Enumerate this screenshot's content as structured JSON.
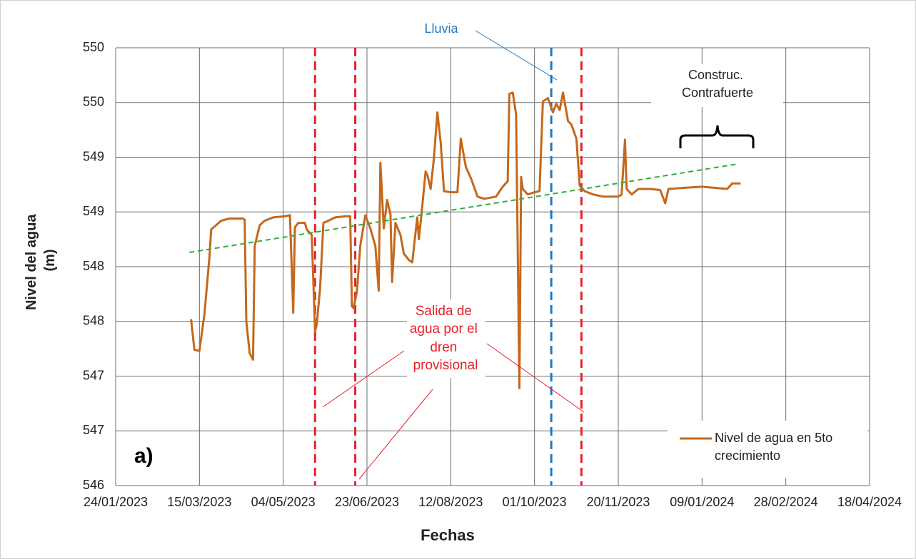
{
  "chart_data": {
    "type": "line",
    "x_label": "Fechas",
    "y_label": [
      "Nivel del agua",
      "(m)"
    ],
    "xlim": [
      "24/01/2023",
      "18/04/2024"
    ],
    "xticks": [
      "24/01/2023",
      "15/03/2023",
      "04/05/2023",
      "23/06/2023",
      "12/08/2023",
      "01/10/2023",
      "20/11/2023",
      "09/01/2024",
      "28/02/2024",
      "18/04/2024"
    ],
    "ylim": [
      546,
      550
    ],
    "yticks": [
      546,
      {
        "value": 546.5,
        "label": "547"
      },
      547,
      {
        "value": 547.5,
        "label": "548"
      },
      548,
      {
        "value": 548.5,
        "label": "549"
      },
      549,
      {
        "value": 549.5,
        "label": "550"
      },
      550
    ],
    "grid": true,
    "legend": "bottom-right",
    "series": [
      {
        "name": [
          "Nivel de agua en 5to",
          "crecimiento"
        ],
        "color": "#c5681c",
        "x": [
          "10/03/2023",
          "12/03/2023",
          "15/03/2023",
          "18/03/2023",
          "21/03/2023",
          "22/03/2023",
          "25/03/2023",
          "28/03/2023",
          "02/04/2023",
          "10/04/2023",
          "11/04/2023",
          "12/04/2023",
          "14/04/2023",
          "16/04/2023",
          "17/04/2023",
          "20/04/2023",
          "23/04/2023",
          "28/04/2023",
          "05/05/2023",
          "08/05/2023",
          "10/05/2023",
          "11/05/2023",
          "13/05/2023",
          "17/05/2023",
          "18/05/2023",
          "21/05/2023",
          "23/05/2023",
          "24/05/2023",
          "26/05/2023",
          "28/05/2023",
          "31/05/2023",
          "04/06/2023",
          "10/06/2023",
          "13/06/2023",
          "14/06/2023",
          "15/06/2023",
          "17/06/2023",
          "19/06/2023",
          "22/06/2023",
          "25/06/2023",
          "28/06/2023",
          "30/06/2023",
          "01/07/2023",
          "03/07/2023",
          "05/07/2023",
          "07/07/2023",
          "08/07/2023",
          "10/07/2023",
          "13/07/2023",
          "15/07/2023",
          "18/07/2023",
          "20/07/2023",
          "23/07/2023",
          "24/07/2023",
          "26/07/2023",
          "28/07/2023",
          "29/07/2023",
          "31/07/2023",
          "02/08/2023",
          "04/08/2023",
          "06/08/2023",
          "08/08/2023",
          "12/08/2023",
          "16/08/2023",
          "18/08/2023",
          "21/08/2023",
          "24/08/2023",
          "28/08/2023",
          "01/09/2023",
          "08/09/2023",
          "12/09/2023",
          "15/09/2023",
          "16/09/2023",
          "18/09/2023",
          "20/09/2023",
          "22/09/2023",
          "23/09/2023",
          "24/09/2023",
          "27/09/2023",
          "01/10/2023",
          "04/10/2023",
          "06/10/2023",
          "09/10/2023",
          "12/10/2023",
          "14/10/2023",
          "16/10/2023",
          "18/10/2023",
          "21/10/2023",
          "23/10/2023",
          "26/10/2023",
          "28/10/2023",
          "31/10/2023",
          "05/11/2023",
          "11/11/2023",
          "20/11/2023",
          "22/11/2023",
          "24/11/2023",
          "25/11/2023",
          "28/11/2023",
          "02/12/2023",
          "09/12/2023",
          "15/12/2023",
          "18/12/2023",
          "20/12/2023",
          "29/12/2023",
          "09/01/2024",
          "17/01/2024",
          "24/01/2024",
          "27/01/2024",
          "30/01/2024",
          "01/02/2024"
        ],
        "values": [
          547.52,
          547.24,
          547.23,
          547.57,
          548.09,
          548.34,
          548.38,
          548.42,
          548.44,
          548.44,
          548.43,
          547.5,
          547.21,
          547.15,
          548.19,
          548.38,
          548.42,
          548.45,
          548.46,
          548.47,
          547.58,
          548.36,
          548.4,
          548.4,
          548.34,
          548.29,
          547.41,
          547.47,
          547.8,
          548.4,
          548.42,
          548.45,
          548.46,
          548.46,
          547.64,
          547.62,
          547.77,
          548.19,
          548.47,
          548.35,
          548.19,
          547.78,
          548.95,
          548.35,
          548.61,
          548.48,
          547.86,
          548.4,
          548.29,
          548.12,
          548.06,
          548.04,
          548.45,
          548.25,
          548.55,
          548.87,
          548.84,
          548.71,
          549.0,
          549.41,
          549.13,
          548.69,
          548.68,
          548.68,
          549.17,
          548.91,
          548.81,
          548.64,
          548.62,
          548.64,
          548.73,
          548.78,
          549.58,
          549.59,
          549.39,
          546.89,
          548.82,
          548.71,
          548.66,
          548.68,
          548.69,
          549.51,
          549.54,
          549.41,
          549.49,
          549.43,
          549.59,
          549.33,
          549.3,
          549.17,
          548.74,
          548.69,
          548.66,
          548.64,
          548.64,
          548.66,
          549.16,
          548.71,
          548.66,
          548.71,
          548.71,
          548.7,
          548.58,
          548.71,
          548.72,
          548.73,
          548.72,
          548.71,
          548.76,
          548.76,
          548.76
        ]
      }
    ],
    "trendline": {
      "color": "#2bb03a",
      "x": [
        "09/03/2023",
        "31/01/2024"
      ],
      "y": [
        548.13,
        548.94
      ]
    },
    "vertical_lines": [
      {
        "x": "23/05/2023",
        "color": "#e8202a"
      },
      {
        "x": "16/06/2023",
        "color": "#e8202a"
      },
      {
        "x": "11/10/2023",
        "color": "#1f78c0"
      },
      {
        "x": "29/10/2023",
        "color": "#e8202a"
      }
    ],
    "annotations": {
      "rain": "Lluvia",
      "buttress": [
        "Construc.",
        "Contrafuerte"
      ],
      "drain": [
        "Salida de",
        "agua por el",
        "dren",
        "provisional"
      ],
      "panel": "a)"
    }
  }
}
